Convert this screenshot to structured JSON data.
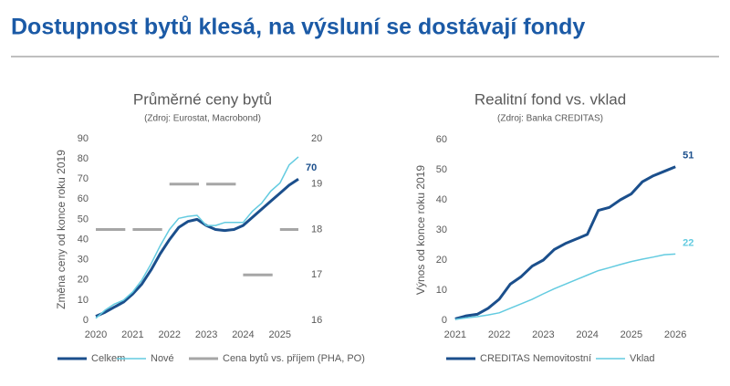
{
  "header": {
    "title": "Dostupnost bytů klesá, na výsluní se dostávají fondy"
  },
  "chart_data": [
    {
      "type": "line",
      "title": "Průměrné ceny bytů",
      "subtitle": "(Zdroj: Eurostat, Macrobond)",
      "y_label": "Změna ceny od konce roku 2019",
      "legend": "bottom",
      "x": [
        2020,
        2020.25,
        2020.5,
        2020.75,
        2021,
        2021.25,
        2021.5,
        2021.75,
        2022,
        2022.25,
        2022.5,
        2022.75,
        2023,
        2023.25,
        2023.5,
        2023.75,
        2024,
        2024.25,
        2024.5,
        2024.75,
        2025,
        2025.25,
        2025.5
      ],
      "xlim": [
        2019.9,
        2025.6
      ],
      "xticks": [
        2020,
        2021,
        2022,
        2023,
        2024,
        2025
      ],
      "ylim": [
        0,
        90
      ],
      "yticks": [
        0,
        10,
        20,
        30,
        40,
        50,
        60,
        70,
        80,
        90
      ],
      "y2lim": [
        16,
        20
      ],
      "y2ticks": [
        16,
        17,
        18,
        19,
        20
      ],
      "series": [
        {
          "name": "Celkem",
          "color": "#1b4f8c",
          "width": 3,
          "end_label": true,
          "values": [
            2,
            4,
            6.5,
            9,
            13,
            18,
            25,
            33,
            40,
            46,
            49,
            50,
            47,
            45,
            44.5,
            45,
            47,
            51,
            55,
            59,
            63,
            67,
            70
          ]
        },
        {
          "name": "Nové",
          "color": "#63cbe0",
          "width": 1.5,
          "values": [
            1,
            5,
            8,
            10,
            14,
            20,
            28,
            37,
            45,
            50.5,
            51.5,
            52,
            47,
            47,
            48.5,
            48.5,
            48.5,
            54,
            58,
            64,
            68,
            77,
            81
          ]
        },
        {
          "name": "Cena bytů vs. příjem (PHA, PO)",
          "color": "#a6a6a6",
          "width": 3,
          "axis": "y2",
          "x": [
            2020,
            2020.8,
            2020.9,
            2021,
            2021.8,
            2021.9,
            2022,
            2022.8,
            2022.9,
            2023,
            2023.8,
            2023.9,
            2024,
            2024.8,
            2024.9,
            2025,
            2025.5
          ],
          "values": [
            18,
            18,
            null,
            18,
            18,
            null,
            19,
            19,
            null,
            19,
            19,
            null,
            17,
            17,
            null,
            18,
            18
          ]
        }
      ]
    },
    {
      "type": "line",
      "title": "Realitní fond vs. vklad",
      "subtitle": "(Zdroj: Banka CREDITAS)",
      "y_label": "Výnos od konce roku 2019",
      "legend": "bottom",
      "x": [
        2021,
        2021.25,
        2021.5,
        2021.75,
        2022,
        2022.25,
        2022.5,
        2022.75,
        2023,
        2023.25,
        2023.5,
        2023.75,
        2024,
        2024.25,
        2024.5,
        2024.75,
        2025,
        2025.25,
        2025.5,
        2025.75,
        2026
      ],
      "xlim": [
        2020.9,
        2026.1
      ],
      "xticks": [
        2021,
        2022,
        2023,
        2024,
        2025,
        2026
      ],
      "ylim": [
        0,
        60
      ],
      "yticks": [
        0,
        10,
        20,
        30,
        40,
        50,
        60
      ],
      "series": [
        {
          "name": "CREDITAS Nemovitostní",
          "color": "#1b4f8c",
          "width": 3,
          "end_label": true,
          "values": [
            0.5,
            1.5,
            2,
            4,
            7,
            12,
            14.5,
            18,
            20,
            23.5,
            25.5,
            27,
            28.5,
            36.5,
            37.5,
            40,
            42,
            46,
            48,
            49.5,
            51
          ]
        },
        {
          "name": "Vklad",
          "color": "#63cbe0",
          "width": 1.5,
          "end_label": true,
          "values": [
            0.3,
            0.8,
            1.2,
            1.8,
            2.5,
            4,
            5.5,
            7,
            8.8,
            10.5,
            12,
            13.5,
            15,
            16.5,
            17.5,
            18.5,
            19.5,
            20.3,
            21,
            21.8,
            22
          ]
        }
      ]
    }
  ]
}
